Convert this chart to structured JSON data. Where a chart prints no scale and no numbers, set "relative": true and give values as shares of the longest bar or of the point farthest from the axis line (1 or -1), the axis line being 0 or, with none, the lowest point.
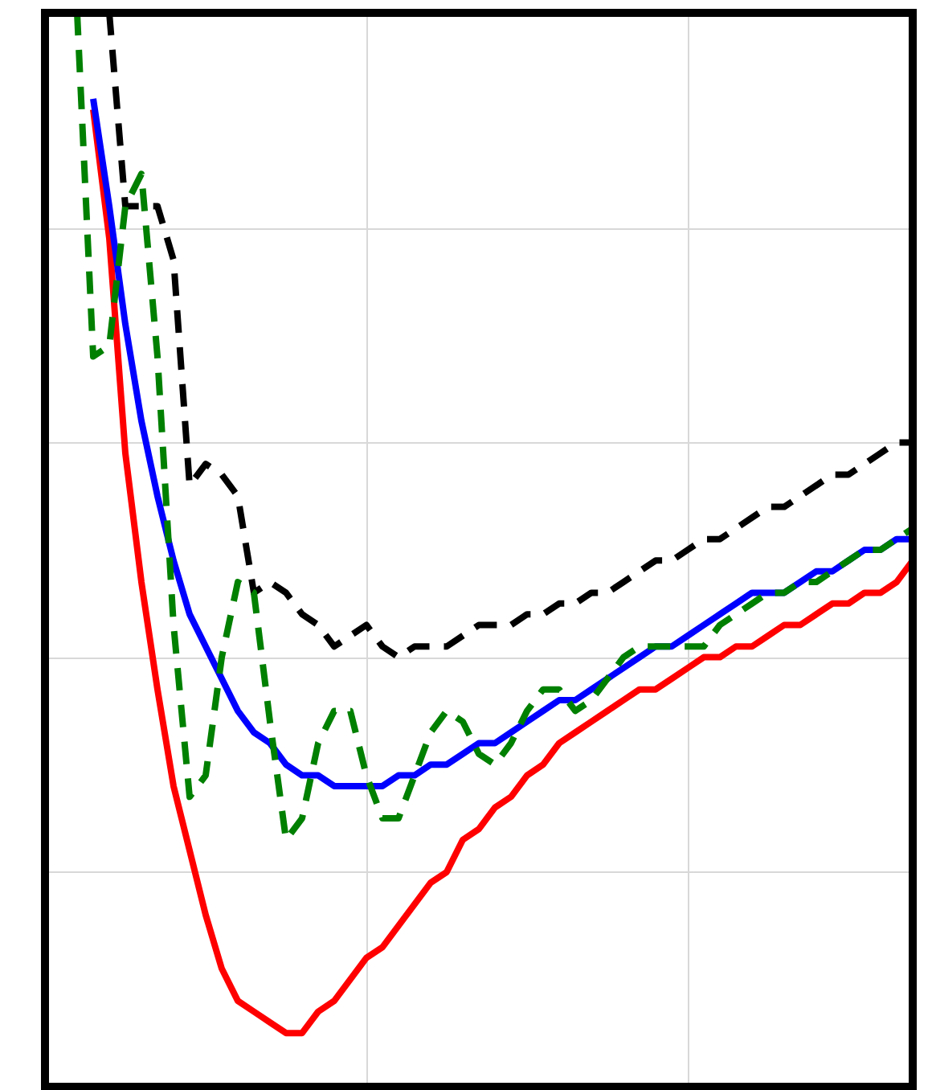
{
  "chart_data": {
    "type": "line",
    "relative": true,
    "grid": true,
    "categories": [
      null,
      null,
      null,
      null,
      null,
      null,
      null,
      null,
      null,
      null,
      null,
      null,
      null,
      null,
      null,
      null,
      null,
      null,
      null,
      null,
      null,
      null,
      null,
      null,
      null,
      null,
      null,
      null,
      null,
      null,
      null,
      null,
      null,
      null,
      null,
      null,
      null,
      null,
      null,
      null,
      null,
      null,
      null,
      null,
      null,
      null,
      null,
      null,
      null,
      null,
      null,
      null,
      null,
      null,
      null
    ],
    "series": [
      {
        "color": "#ff0000",
        "line_style": "solid",
        "values": [
          null,
          null,
          null,
          0.91,
          0.79,
          0.59,
          0.47,
          0.37,
          0.28,
          0.22,
          0.16,
          0.11,
          0.08,
          0.07,
          0.06,
          0.05,
          0.05,
          0.07,
          0.08,
          0.1,
          0.12,
          0.13,
          0.15,
          0.17,
          0.19,
          0.2,
          0.23,
          0.24,
          0.26,
          0.27,
          0.29,
          0.3,
          0.32,
          0.33,
          0.34,
          0.35,
          0.36,
          0.37,
          0.37,
          0.38,
          0.39,
          0.4,
          0.4,
          0.41,
          0.41,
          0.42,
          0.43,
          0.43,
          0.44,
          0.45,
          0.45,
          0.46,
          0.46,
          0.47,
          0.49
        ]
      },
      {
        "color": "#0000ff",
        "line_style": "solid",
        "values": [
          null,
          null,
          null,
          0.92,
          0.82,
          0.71,
          0.62,
          0.55,
          0.49,
          0.44,
          0.41,
          0.38,
          0.35,
          0.33,
          0.32,
          0.3,
          0.29,
          0.29,
          0.28,
          0.28,
          0.28,
          0.28,
          0.29,
          0.29,
          0.3,
          0.3,
          0.31,
          0.32,
          0.32,
          0.33,
          0.34,
          0.35,
          0.36,
          0.36,
          0.37,
          0.38,
          0.39,
          0.4,
          0.41,
          0.41,
          0.42,
          0.43,
          0.44,
          0.45,
          0.46,
          0.46,
          0.46,
          0.47,
          0.48,
          0.48,
          0.49,
          0.5,
          0.5,
          0.51,
          0.51
        ]
      },
      {
        "color": "#000000",
        "line_style": "dashed",
        "values": [
          null,
          null,
          null,
          null,
          1.0,
          0.82,
          0.82,
          0.82,
          0.77,
          0.56,
          0.58,
          0.57,
          0.55,
          0.46,
          0.47,
          0.46,
          0.44,
          0.43,
          0.41,
          0.42,
          0.43,
          0.41,
          0.4,
          0.41,
          0.41,
          0.41,
          0.42,
          0.43,
          0.43,
          0.43,
          0.44,
          0.44,
          0.45,
          0.45,
          0.46,
          0.46,
          0.47,
          0.48,
          0.49,
          0.49,
          0.5,
          0.51,
          0.51,
          0.52,
          0.53,
          0.54,
          0.54,
          0.55,
          0.56,
          0.57,
          0.57,
          0.58,
          0.59,
          0.6,
          0.6
        ]
      },
      {
        "color": "#008000",
        "line_style": "dashed",
        "values": [
          null,
          null,
          1.0,
          0.68,
          0.69,
          0.82,
          0.85,
          0.68,
          0.43,
          0.27,
          0.29,
          0.4,
          0.47,
          0.46,
          0.34,
          0.23,
          0.25,
          0.32,
          0.35,
          0.35,
          0.29,
          0.25,
          0.25,
          0.29,
          0.33,
          0.35,
          0.34,
          0.31,
          0.3,
          0.32,
          0.35,
          0.37,
          0.37,
          0.35,
          0.36,
          0.38,
          0.4,
          0.41,
          0.41,
          0.41,
          0.41,
          0.41,
          0.43,
          0.44,
          0.45,
          0.46,
          0.46,
          0.47,
          0.47,
          0.48,
          0.49,
          0.5,
          0.5,
          0.51,
          0.52
        ]
      }
    ]
  }
}
